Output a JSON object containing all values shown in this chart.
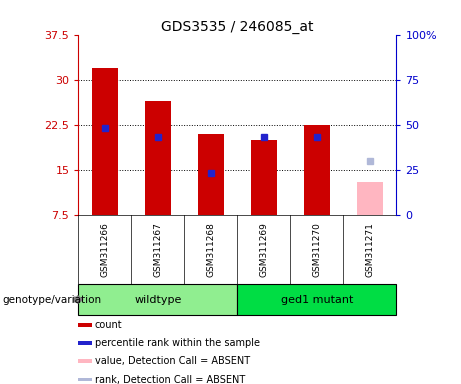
{
  "title": "GDS3535 / 246085_at",
  "samples": [
    "GSM311266",
    "GSM311267",
    "GSM311268",
    "GSM311269",
    "GSM311270",
    "GSM311271"
  ],
  "red_bars": [
    32.0,
    26.5,
    21.0,
    20.0,
    22.5,
    null
  ],
  "blue_markers": [
    22.0,
    20.5,
    14.5,
    20.5,
    20.5,
    null
  ],
  "pink_bar": [
    null,
    null,
    null,
    null,
    null,
    13.0
  ],
  "blue_gray_marker": [
    null,
    null,
    null,
    null,
    null,
    16.5
  ],
  "ylim_left": [
    7.5,
    37.5
  ],
  "yticks_left": [
    7.5,
    15.0,
    22.5,
    30.0,
    37.5
  ],
  "ytick_labels_left": [
    "7.5",
    "15",
    "22.5",
    "30",
    "37.5"
  ],
  "ylim_right": [
    0,
    100
  ],
  "yticks_right": [
    0,
    25,
    50,
    75,
    100
  ],
  "ytick_labels_right": [
    "0",
    "25",
    "50",
    "75",
    "100%"
  ],
  "wildtype_label": "wildtype",
  "mutant_label": "ged1 mutant",
  "genotype_label": "genotype/variation",
  "legend_items": [
    {
      "color": "#cc0000",
      "label": "count"
    },
    {
      "color": "#2222cc",
      "label": "percentile rank within the sample"
    },
    {
      "color": "#ffb6c1",
      "label": "value, Detection Call = ABSENT"
    },
    {
      "color": "#b0b8d8",
      "label": "rank, Detection Call = ABSENT"
    }
  ],
  "bar_width": 0.5,
  "marker_size": 4,
  "red_color": "#cc0000",
  "blue_color": "#2222cc",
  "pink_color": "#ffb6c1",
  "bluegray_color": "#b0b8d8",
  "wildtype_bg": "#90EE90",
  "mutant_bg": "#00dd44",
  "sample_bg": "#c8c8c8",
  "left_tick_color": "#cc0000",
  "right_tick_color": "#0000cc"
}
